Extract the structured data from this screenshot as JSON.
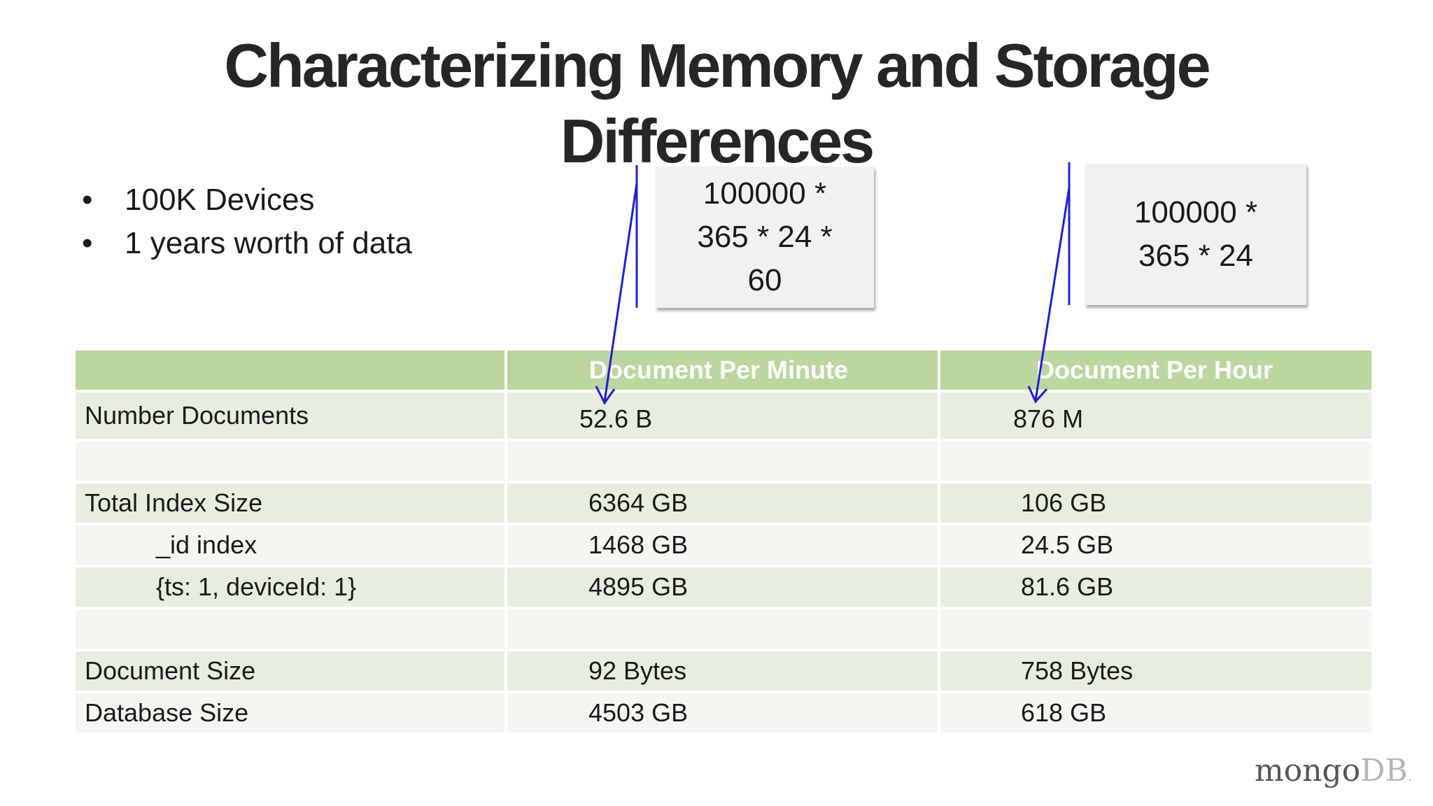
{
  "slide": {
    "title_line1": "Characterizing Memory and Storage",
    "title_line2": "Differences",
    "bullets": [
      "100K Devices",
      "1 years worth of data"
    ]
  },
  "calc_boxes": {
    "minute": [
      "100000 *",
      "365 * 24 *",
      "60"
    ],
    "hour": [
      "100000 *",
      "365 * 24"
    ]
  },
  "table": {
    "headers": [
      "",
      "Document Per Minute",
      "Document Per Hour"
    ],
    "rows": [
      {
        "label": "Number Documents",
        "minute": "52.6 B",
        "hour": "876 M",
        "indent": false
      },
      {
        "label": "",
        "minute": "",
        "hour": "",
        "indent": false
      },
      {
        "label": "Total Index Size",
        "minute": "6364 GB",
        "hour": "106 GB",
        "indent": false
      },
      {
        "label": "_id index",
        "minute": "1468 GB",
        "hour": "24.5 GB",
        "indent": true
      },
      {
        "label": "{ts: 1, deviceId: 1}",
        "minute": "4895 GB",
        "hour": "81.6 GB",
        "indent": true
      },
      {
        "label": "",
        "minute": "",
        "hour": "",
        "indent": false
      },
      {
        "label": "Document Size",
        "minute": "92 Bytes",
        "hour": "758 Bytes",
        "indent": false
      },
      {
        "label": "Database Size",
        "minute": "4503 GB",
        "hour": "618 GB",
        "indent": false
      }
    ]
  },
  "logo": {
    "part1": "mongo",
    "part2": "DB",
    "mark": "."
  },
  "colors": {
    "header_green": "#bcd6a0",
    "row_dark": "#e8eedf",
    "row_light": "#f4f6f1",
    "annotation_blue": "#1f1fd6"
  }
}
